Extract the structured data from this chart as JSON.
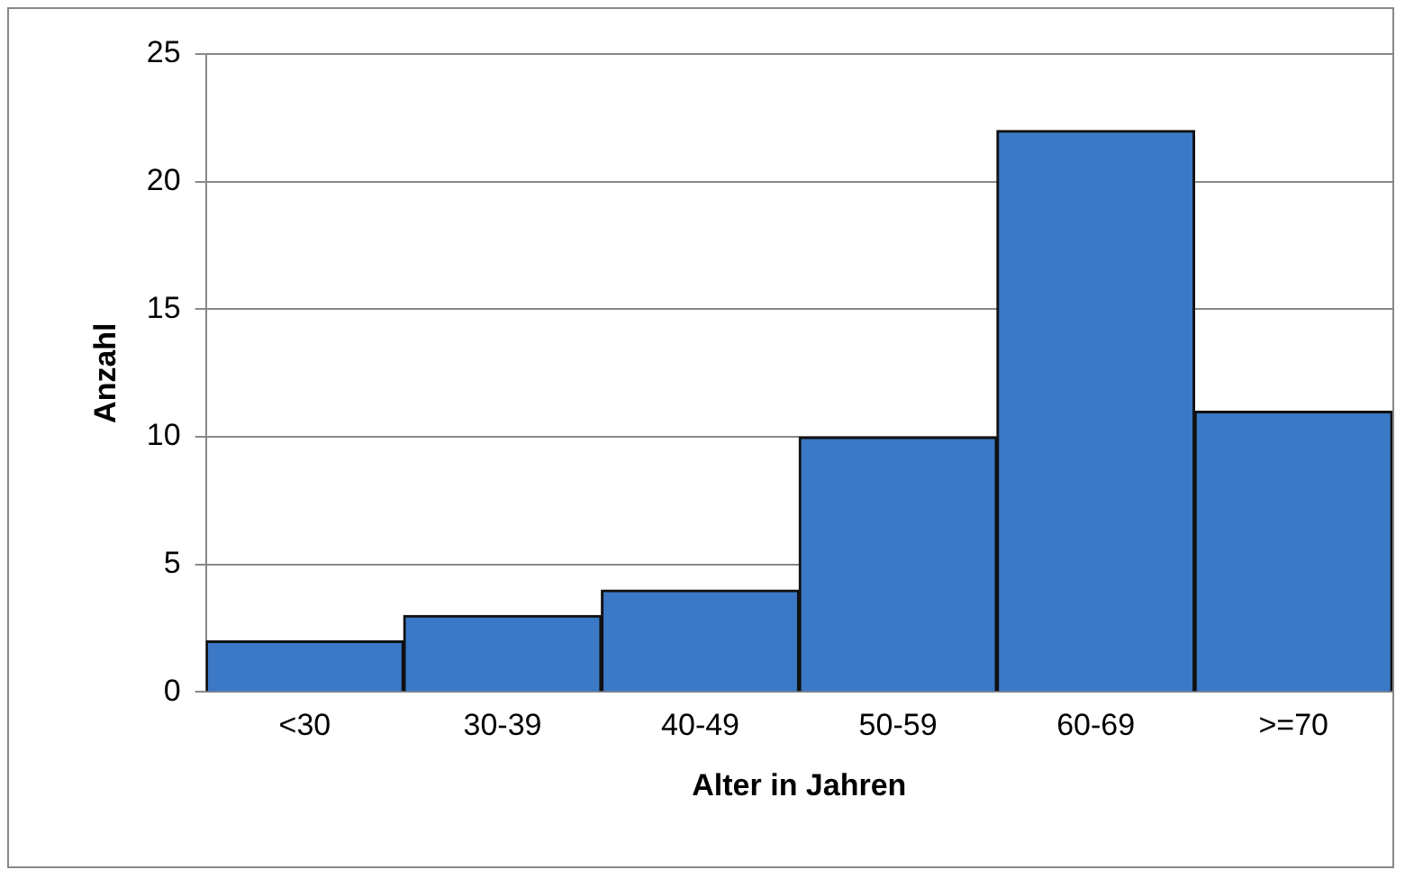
{
  "chart_data": {
    "type": "bar",
    "xlabel": "Alter in Jahren",
    "ylabel": "Anzahl",
    "categories": [
      "<30",
      "30-39",
      "40-49",
      "50-59",
      "60-69",
      ">=70"
    ],
    "values": [
      2,
      3,
      4,
      10,
      22,
      11
    ],
    "color": "#3b79c6",
    "ylim": [
      0,
      25
    ],
    "yticks": [
      0,
      5,
      10,
      15,
      20,
      25
    ],
    "grid": "y",
    "legend": false
  }
}
